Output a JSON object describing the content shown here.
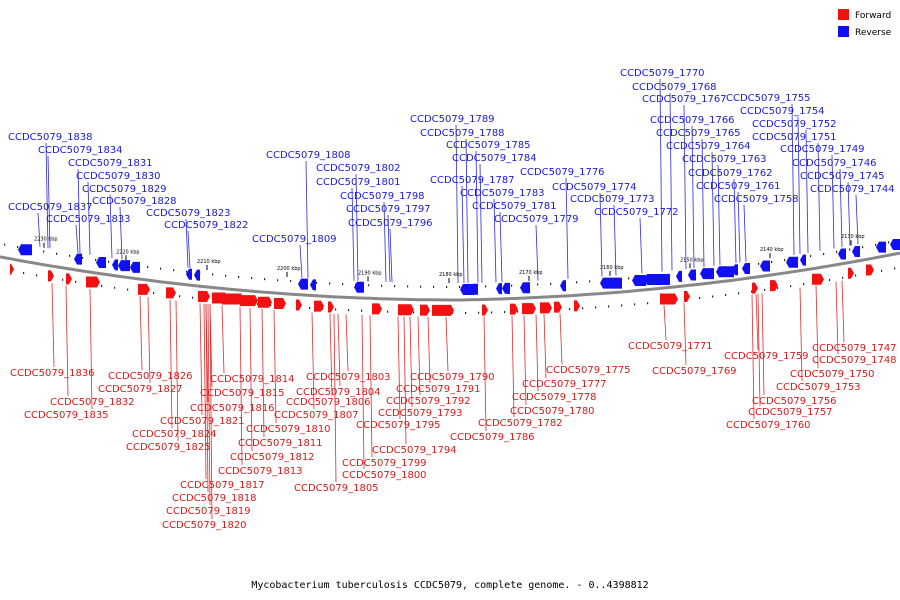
{
  "legend": {
    "forward_label": "Forward",
    "reverse_label": "Reverse",
    "forward_color": "#f21010",
    "reverse_color": "#1010f2"
  },
  "caption": "Mycobacterium tuberculosis CCDC5079, complete genome. - 0..4398812",
  "ticks": [
    "2230 kbp",
    "2220 kbp",
    "2210 kbp",
    "2200 kbp",
    "2190 kbp",
    "2180 kbp",
    "2170 kbp",
    "2160 kbp",
    "2150 kbp",
    "2140 kbp",
    "2130 kbp",
    "2120 kbp"
  ],
  "reverse_genes": [
    "CCDC5079_1838",
    "CCDC5079_1834",
    "CCDC5079_1831",
    "CCDC5079_1830",
    "CCDC5079_1829",
    "CCDC5079_1828",
    "CCDC5079_1837",
    "CCDC5079_1833",
    "CCDC5079_1823",
    "CCDC5079_1822",
    "CCDC5079_1808",
    "CCDC5079_1809",
    "CCDC5079_1802",
    "CCDC5079_1801",
    "CCDC5079_1798",
    "CCDC5079_1797",
    "CCDC5079_1796",
    "CCDC5079_1789",
    "CCDC5079_1788",
    "CCDC5079_1785",
    "CCDC5079_1784",
    "CCDC5079_1787",
    "CCDC5079_1783",
    "CCDC5079_1781",
    "CCDC5079_1779",
    "CCDC5079_1776",
    "CCDC5079_1774",
    "CCDC5079_1773",
    "CCDC5079_1772",
    "CCDC5079_1770",
    "CCDC5079_1768",
    "CCDC5079_1767",
    "CCDC5079_1766",
    "CCDC5079_1765",
    "CCDC5079_1764",
    "CCDC5079_1763",
    "CCDC5079_1762",
    "CCDC5079_1761",
    "CCDC5079_1758",
    "CCDC5079_1755",
    "CCDC5079_1754",
    "CCDC5079_1752",
    "CCDC5079_1751",
    "CCDC5079_1749",
    "CCDC5079_1746",
    "CCDC5079_1745",
    "CCDC5079_1744"
  ],
  "forward_genes": [
    "CCDC5079_1836",
    "CCDC5079_1832",
    "CCDC5079_1835",
    "CCDC5079_1826",
    "CCDC5079_1827",
    "CCDC5079_1824",
    "CCDC5079_1825",
    "CCDC5079_1821",
    "CCDC5079_1816",
    "CCDC5079_1815",
    "CCDC5079_1814",
    "CCDC5079_1817",
    "CCDC5079_1818",
    "CCDC5079_1819",
    "CCDC5079_1820",
    "CCDC5079_1813",
    "CCDC5079_1812",
    "CCDC5079_1811",
    "CCDC5079_1810",
    "CCDC5079_1807",
    "CCDC5079_1806",
    "CCDC5079_1805",
    "CCDC5079_1804",
    "CCDC5079_1803",
    "CCDC5079_1800",
    "CCDC5079_1799",
    "CCDC5079_1795",
    "CCDC5079_1794",
    "CCDC5079_1793",
    "CCDC5079_1792",
    "CCDC5079_1791",
    "CCDC5079_1790",
    "CCDC5079_1786",
    "CCDC5079_1782",
    "CCDC5079_1780",
    "CCDC5079_1778",
    "CCDC5079_1777",
    "CCDC5079_1775",
    "CCDC5079_1771",
    "CCDC5079_1769",
    "CCDC5079_1760",
    "CCDC5079_1757",
    "CCDC5079_1756",
    "CCDC5079_1759",
    "CCDC5079_1753",
    "CCDC5079_1750",
    "CCDC5079_1748",
    "CCDC5079_1747"
  ]
}
